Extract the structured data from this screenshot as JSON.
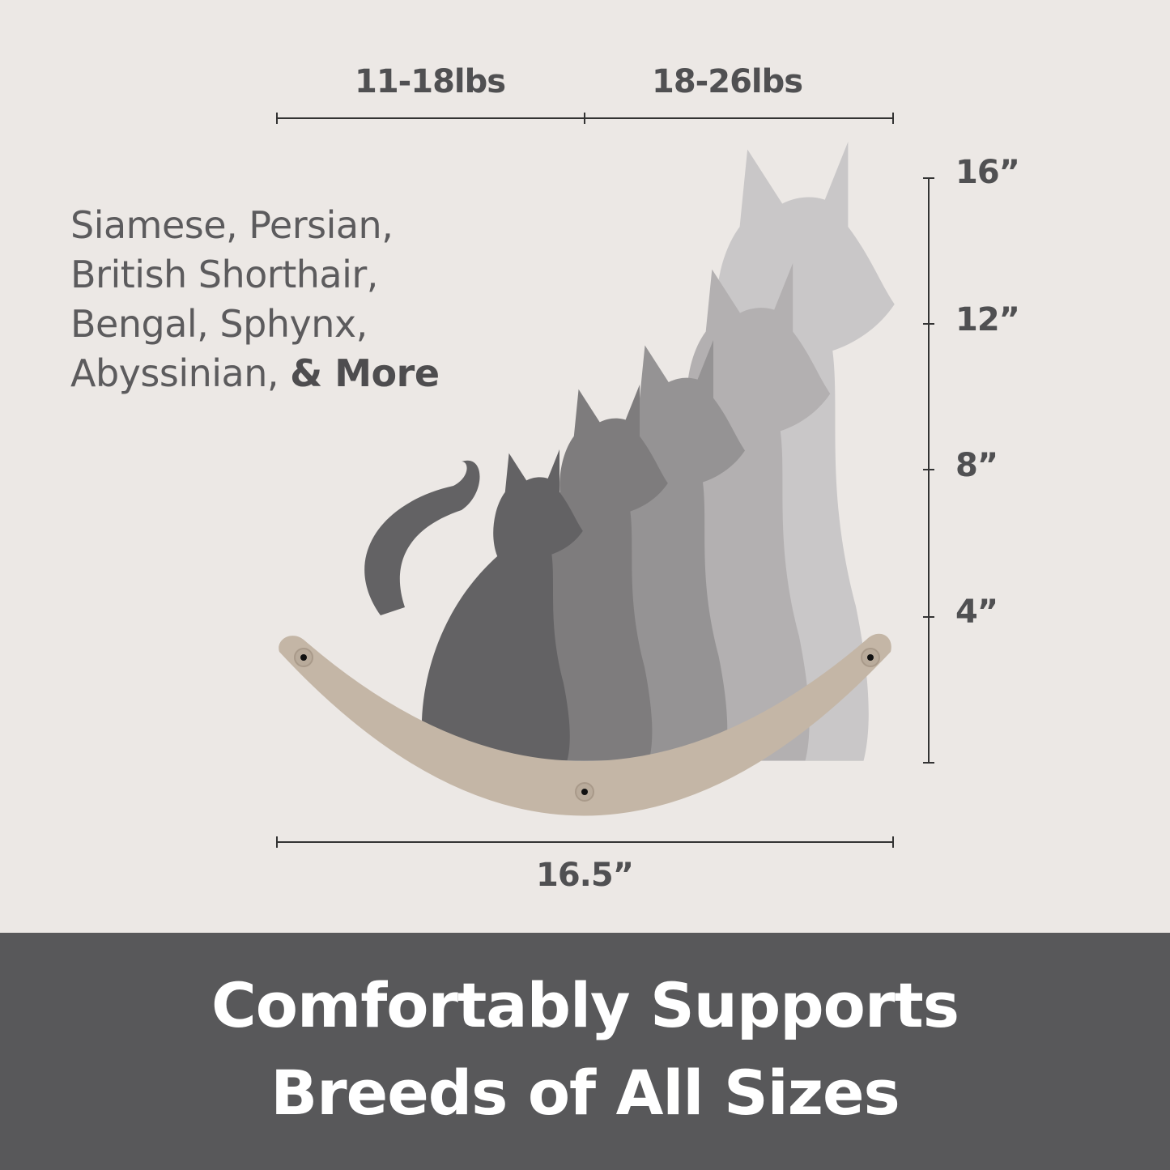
{
  "weights": [
    "11-18lbs",
    "18-26lbs"
  ],
  "heights": [
    "16”",
    "12”",
    "8”",
    "4”"
  ],
  "width_label": "16.5”",
  "breeds": {
    "lines": [
      "Siamese, Persian,",
      "British Shorthair,",
      "Bengal, Sphynx,",
      "Abyssinian, "
    ],
    "emphasis": "& More"
  },
  "title": {
    "line1": "Comfortably Supports",
    "line2": "Breeds of All Sizes"
  },
  "colors": {
    "background": "#ece8e5",
    "band": "#58585a",
    "shelf": "#c4b6a6"
  }
}
